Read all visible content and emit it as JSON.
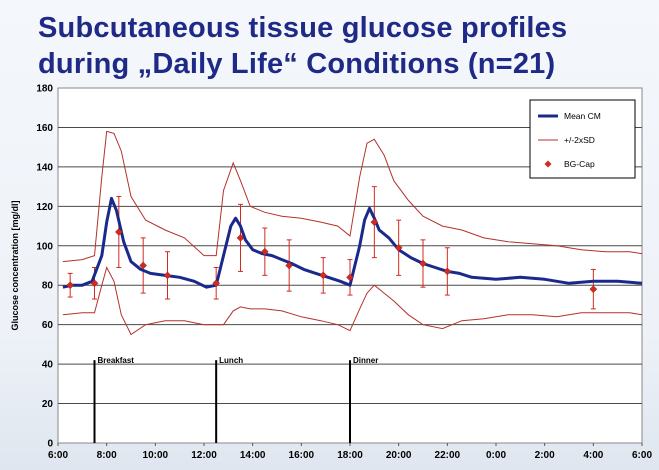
{
  "title": {
    "line1": "Subcutaneous tissue glucose profiles",
    "line2": "during „Daily Life“ Conditions (n=21)"
  },
  "chart_data": {
    "type": "line",
    "title": "Subcutaneous tissue glucose profiles during „Daily Life“ Conditions (n=21)",
    "ylabel": "Glucose concentration [mg/dl]",
    "xlabel": "",
    "x_range_hours": [
      6,
      30
    ],
    "ylim": [
      0,
      180
    ],
    "yticks": [
      0,
      20,
      40,
      60,
      80,
      100,
      120,
      140,
      160,
      180
    ],
    "xtick_labels": [
      "6:00",
      "8:00",
      "10:00",
      "12:00",
      "14:00",
      "16:00",
      "18:00",
      "20:00",
      "22:00",
      "0:00",
      "2:00",
      "4:00",
      "6:00"
    ],
    "grid": true,
    "legend_position": "top-right",
    "legend": [
      "Mean CM",
      "+/-2xSD",
      "BG-Cap"
    ],
    "colors": {
      "mean": "#1a2a8c",
      "sd": "#b4322c",
      "bgcap": "#d42a22"
    },
    "meals": [
      {
        "label": "Breakfast",
        "time": 7.5
      },
      {
        "label": "Lunch",
        "time": 12.5
      },
      {
        "label": "Dinner",
        "time": 18
      }
    ],
    "series": [
      {
        "name": "Mean CM",
        "x": [
          6.2,
          6.6,
          7.0,
          7.4,
          7.8,
          8.0,
          8.2,
          8.4,
          8.7,
          9.0,
          9.4,
          9.8,
          10.4,
          11.0,
          11.6,
          12.1,
          12.5,
          12.8,
          13.1,
          13.3,
          13.5,
          13.7,
          14.0,
          14.4,
          14.8,
          15.2,
          15.6,
          16.1,
          16.6,
          17.1,
          17.6,
          18.0,
          18.4,
          18.6,
          18.8,
          19.0,
          19.2,
          19.6,
          20.0,
          20.5,
          21.0,
          21.5,
          22.0,
          22.5,
          23.0,
          24.0,
          25.0,
          26.0,
          27.0,
          28.0,
          29.0,
          30.0
        ],
        "y": [
          79,
          80,
          80,
          82,
          95,
          112,
          124,
          118,
          102,
          92,
          88,
          86,
          85,
          84,
          82,
          79,
          80,
          95,
          110,
          114,
          110,
          103,
          98,
          96,
          95,
          93,
          91,
          88,
          86,
          84,
          82,
          80,
          100,
          113,
          119,
          114,
          108,
          104,
          98,
          94,
          91,
          89,
          87,
          86,
          84,
          83,
          84,
          83,
          81,
          82,
          82,
          81
        ]
      },
      {
        "name": "+/-2xSD",
        "x": [
          6.2,
          7.0,
          7.5,
          7.8,
          8.0,
          8.3,
          8.6,
          9.0,
          9.6,
          10.4,
          11.2,
          12.0,
          12.5,
          12.8,
          13.2,
          13.5,
          13.9,
          14.5,
          15.2,
          16.0,
          16.8,
          17.5,
          18.0,
          18.4,
          18.7,
          19.0,
          19.4,
          19.8,
          20.4,
          21.0,
          21.8,
          22.6,
          23.5,
          24.5,
          25.5,
          26.5,
          27.5,
          28.5,
          29.5,
          30.0
        ],
        "y": [
          92,
          93,
          95,
          135,
          158,
          157,
          148,
          125,
          113,
          108,
          104,
          95,
          95,
          128,
          142,
          133,
          120,
          117,
          115,
          114,
          112,
          110,
          105,
          135,
          152,
          154,
          146,
          133,
          123,
          115,
          110,
          108,
          104,
          102,
          101,
          100,
          98,
          97,
          97,
          96
        ]
      },
      {
        "name": "+/-2xSD",
        "x": [
          6.2,
          7.0,
          7.5,
          7.8,
          8.0,
          8.3,
          8.6,
          9.0,
          9.6,
          10.4,
          11.2,
          12.0,
          12.5,
          12.8,
          13.2,
          13.5,
          13.9,
          14.5,
          15.2,
          16.0,
          16.8,
          17.5,
          18.0,
          18.4,
          18.7,
          19.0,
          19.4,
          19.8,
          20.4,
          21.0,
          21.8,
          22.6,
          23.5,
          24.5,
          25.5,
          26.5,
          27.5,
          28.5,
          29.5,
          30.0
        ],
        "y": [
          65,
          66,
          66,
          80,
          89,
          82,
          65,
          55,
          60,
          62,
          62,
          60,
          60,
          60,
          67,
          69,
          68,
          68,
          67,
          64,
          62,
          60,
          57,
          68,
          76,
          80,
          76,
          72,
          65,
          60,
          58,
          62,
          63,
          65,
          65,
          64,
          66,
          66,
          66,
          65
        ]
      },
      {
        "name": "BG-Cap",
        "x": [
          6.5,
          7.5,
          8.5,
          9.5,
          10.5,
          12.5,
          13.5,
          14.5,
          15.5,
          16.9,
          18.0,
          19.0,
          20.0,
          21.0,
          22.0,
          28.0
        ],
        "y": [
          80,
          81,
          107,
          90,
          85,
          81,
          104,
          97,
          90,
          85,
          84,
          112,
          99,
          91,
          87,
          78
        ],
        "err": [
          6,
          8,
          18,
          14,
          12,
          8,
          17,
          12,
          13,
          9,
          9,
          18,
          14,
          12,
          12,
          10
        ]
      }
    ]
  }
}
